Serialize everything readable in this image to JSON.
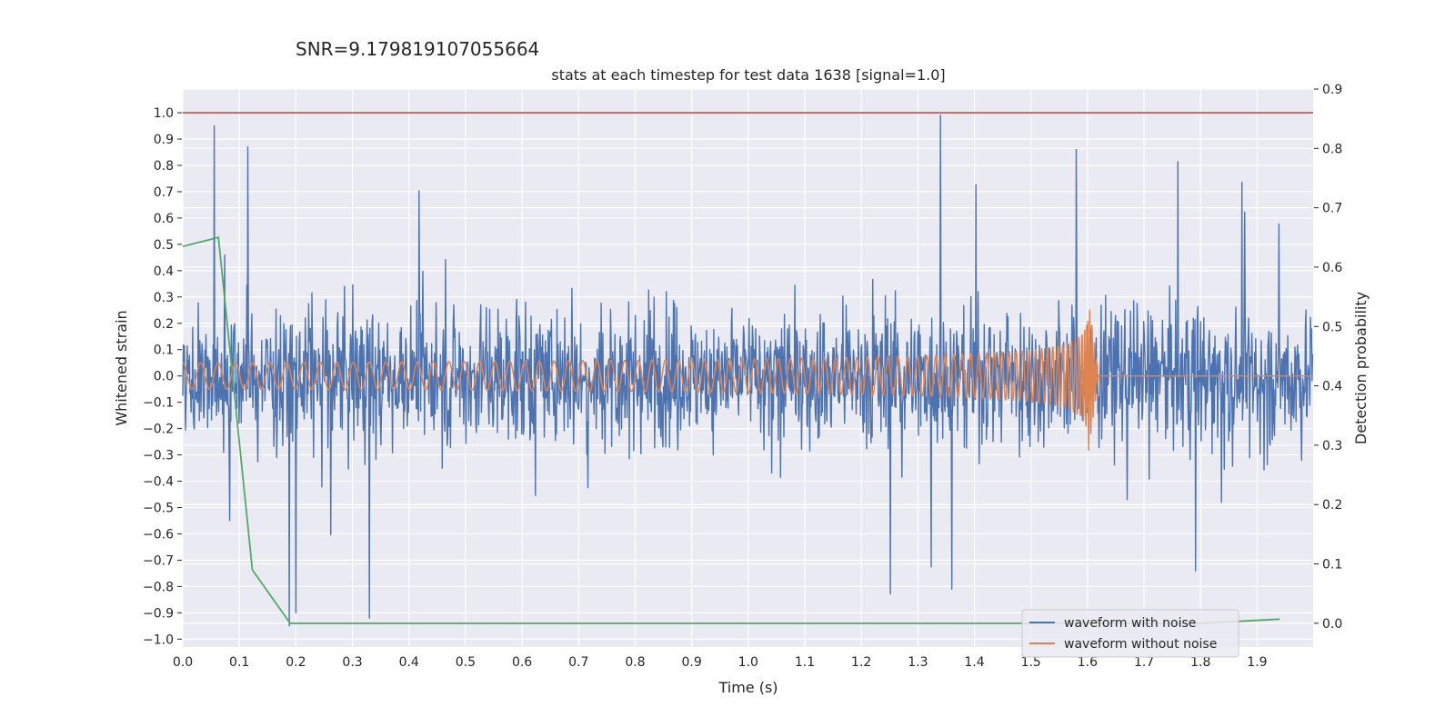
{
  "snr_label": "SNR=9.179819107055664",
  "chart_data": {
    "type": "line",
    "title": "stats at each timestep for test data 1638 [signal=1.0]",
    "xlabel": "Time (s)",
    "ylabel": "Whitened strain",
    "y2label": "Detection probability",
    "xlim": [
      0.0,
      1.999
    ],
    "ylim": [
      -1.03,
      1.09
    ],
    "y2lim": [
      -0.04,
      0.9
    ],
    "xticks": [
      0.0,
      0.1,
      0.2,
      0.3,
      0.4,
      0.5,
      0.6,
      0.7,
      0.8,
      0.9,
      1.0,
      1.1,
      1.2,
      1.3,
      1.4,
      1.5,
      1.6,
      1.7,
      1.8,
      1.9
    ],
    "xtick_labels": [
      "0.0",
      "0.1",
      "0.2",
      "0.3",
      "0.4",
      "0.5",
      "0.6",
      "0.7",
      "0.8",
      "0.9",
      "1.0",
      "1.1",
      "1.2",
      "1.3",
      "1.4",
      "1.5",
      "1.6",
      "1.7",
      "1.8",
      "1.9"
    ],
    "yticks": [
      -1.0,
      -0.9,
      -0.8,
      -0.7,
      -0.6,
      -0.5,
      -0.4,
      -0.3,
      -0.2,
      -0.1,
      0.0,
      0.1,
      0.2,
      0.3,
      0.4,
      0.5,
      0.6,
      0.7,
      0.8,
      0.9,
      1.0
    ],
    "ytick_labels": [
      "−1.0",
      "−0.9",
      "−0.8",
      "−0.7",
      "−0.6",
      "−0.5",
      "−0.4",
      "−0.3",
      "−0.2",
      "−0.1",
      "0.0",
      "0.1",
      "0.2",
      "0.3",
      "0.4",
      "0.5",
      "0.6",
      "0.7",
      "0.8",
      "0.9",
      "1.0"
    ],
    "y2ticks": [
      0.0,
      0.1,
      0.2,
      0.3,
      0.4,
      0.5,
      0.6,
      0.7,
      0.8,
      0.9
    ],
    "y2tick_labels": [
      "0.0",
      "0.1",
      "0.2",
      "0.3",
      "0.4",
      "0.5",
      "0.6",
      "0.7",
      "0.8",
      "0.9"
    ],
    "grid": true,
    "legend_position": "lower right",
    "series": [
      {
        "name": "waveform with noise",
        "axis": "left",
        "color": "#4c72b0",
        "style": "dense noisy trace",
        "notable_peaks": [
          {
            "x": 1.34,
            "y": 0.99
          },
          {
            "x": 0.33,
            "y": -0.92
          },
          {
            "x": 0.2,
            "y": -0.9
          },
          {
            "x": 0.115,
            "y": 0.87
          },
          {
            "x": 1.36,
            "y": -0.81
          },
          {
            "x": 1.58,
            "y": 0.86
          }
        ]
      },
      {
        "name": "waveform without noise",
        "axis": "left",
        "color": "#dd8452",
        "style": "chirp signal",
        "amplitude_start": 0.05,
        "amplitude_peak": 0.32,
        "merger_time": 1.6,
        "zero_after": 1.62
      },
      {
        "name": "",
        "axis": "right",
        "color": "#55a868",
        "x": [
          0.0,
          0.063,
          0.123,
          0.19,
          0.5,
          1.0,
          1.5,
          1.8,
          1.94
        ],
        "y": [
          0.635,
          0.65,
          0.09,
          0.0,
          0.0,
          0.0,
          0.0,
          0.0,
          0.007
        ]
      },
      {
        "name": "",
        "axis": "left",
        "color": "#c44e52",
        "type": "hline",
        "y": 1.0
      }
    ]
  }
}
